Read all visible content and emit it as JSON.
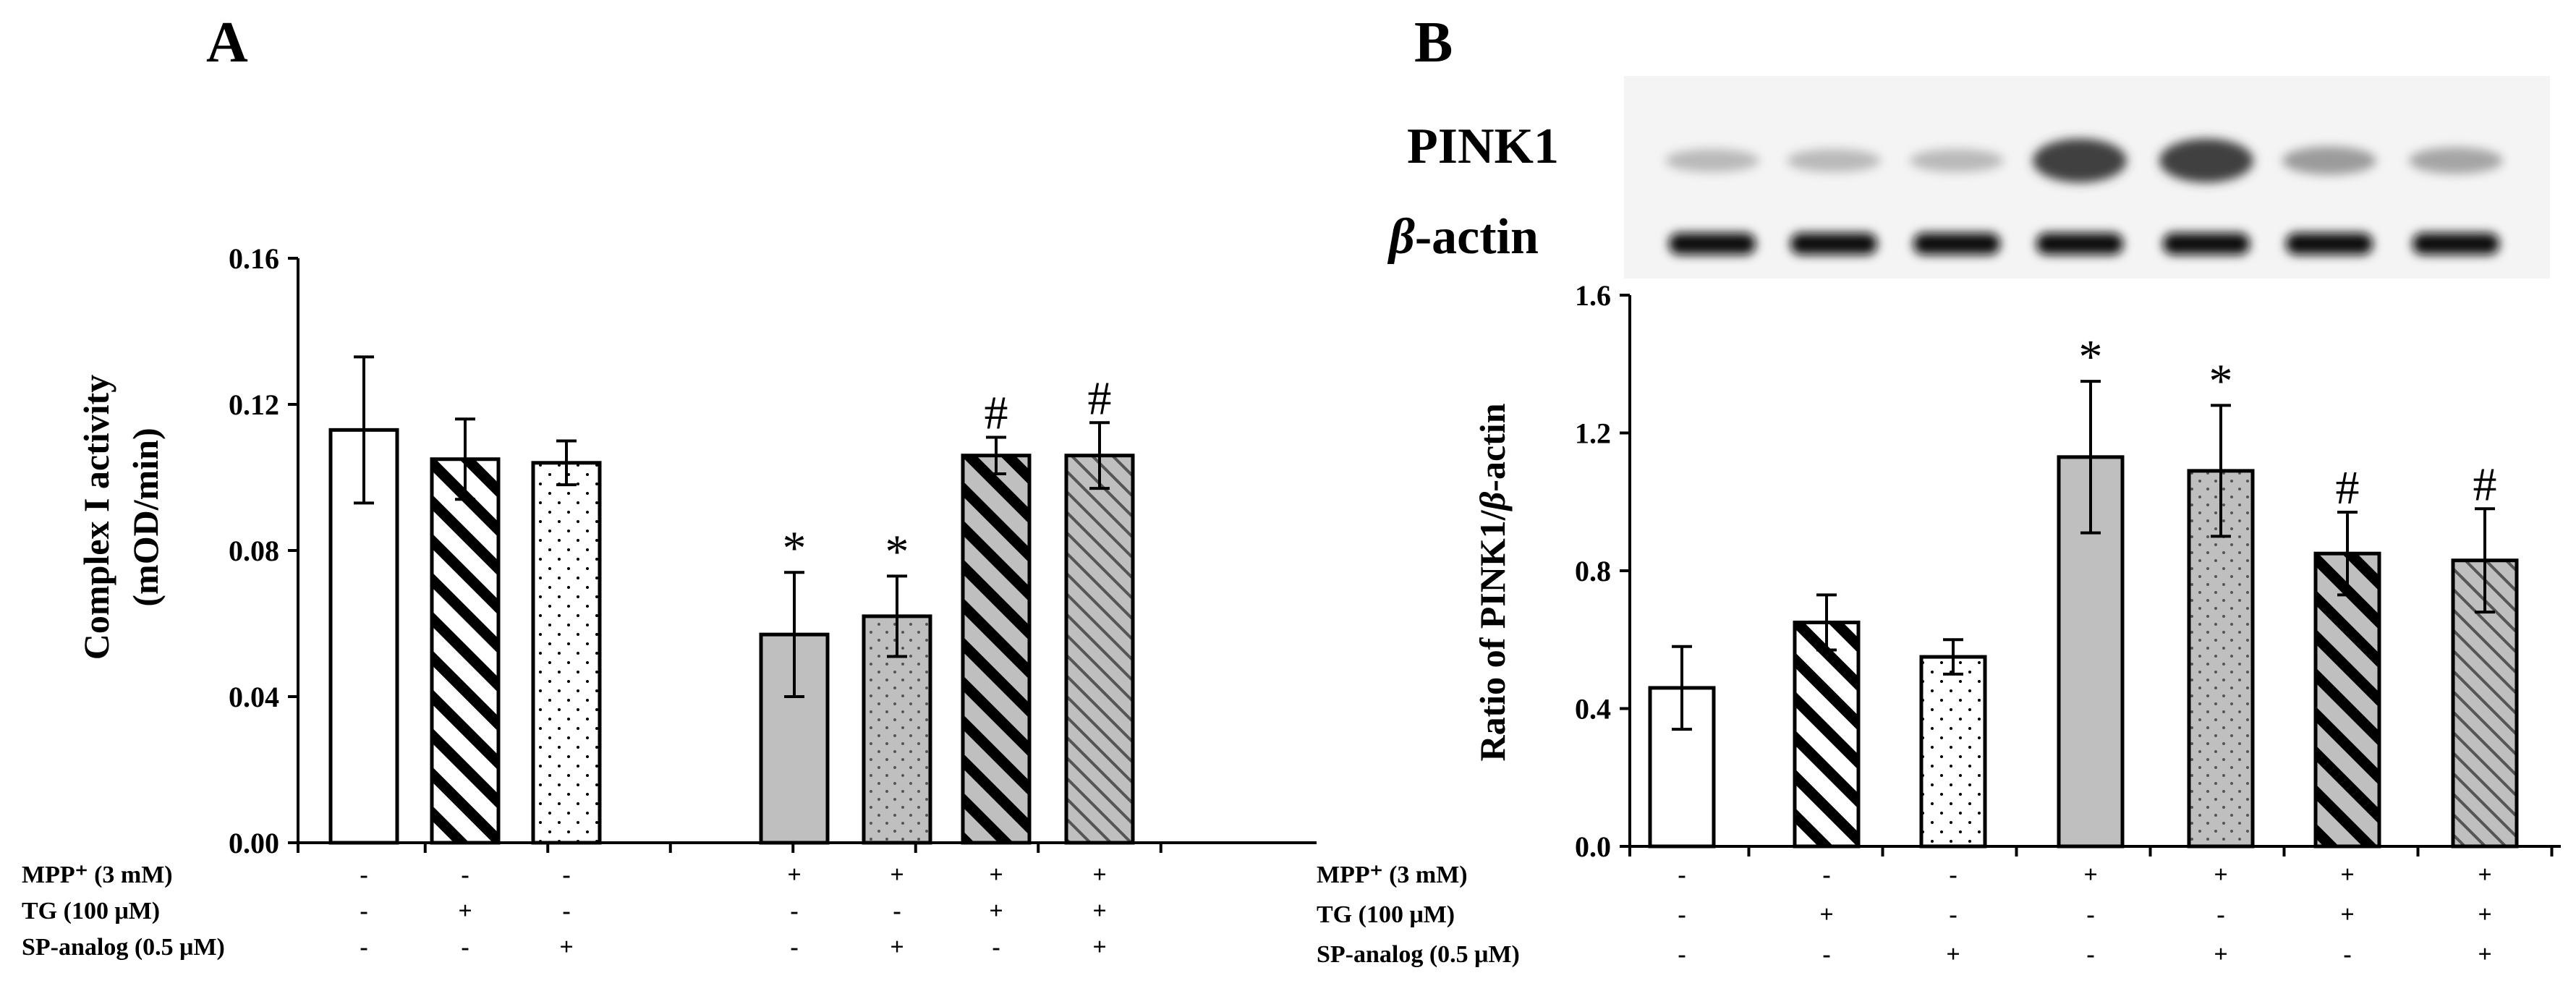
{
  "panels": {
    "A": {
      "letter": "A"
    },
    "B": {
      "letter": "B"
    }
  },
  "blot": {
    "band1_label": "PINK1",
    "band2_label_greek": "β",
    "band2_label_rest": "-actin",
    "pink1_intensity": [
      0.25,
      0.25,
      0.25,
      0.85,
      0.85,
      0.4,
      0.35
    ],
    "actin_intensity": [
      1,
      1,
      1,
      1,
      1,
      1,
      1
    ]
  },
  "conditions": {
    "labels": [
      "MPP⁺ (3 mM)",
      "TG (100 μM)",
      "SP-analog (0.5 μM)"
    ],
    "matrix": [
      [
        "-",
        "-",
        "-",
        "+",
        "+",
        "+",
        "+"
      ],
      [
        "-",
        "+",
        "-",
        "-",
        "-",
        "+",
        "+"
      ],
      [
        "-",
        "-",
        "+",
        "-",
        "+",
        "-",
        "+"
      ]
    ]
  },
  "colors": {
    "gray_fill": "#bfbfbf",
    "white_fill": "#ffffff",
    "ink": "#000000"
  },
  "chart_data": [
    {
      "type": "bar",
      "panel": "A",
      "ylabel_line1": "Complex I activity",
      "ylabel_line2": "(mOD/min)",
      "ylim": [
        0,
        0.16
      ],
      "yticks": [
        "0.00",
        "0.04",
        "0.08",
        "0.12",
        "0.16"
      ],
      "ytick_values": [
        0,
        0.04,
        0.08,
        0.12,
        0.16
      ],
      "values": [
        0.113,
        0.105,
        0.104,
        0.057,
        0.062,
        0.106,
        0.106
      ],
      "errors": [
        0.02,
        0.011,
        0.006,
        0.017,
        0.011,
        0.005,
        0.009
      ],
      "patterns": [
        "white",
        "hatch-black",
        "dots-white",
        "gray",
        "dots-gray",
        "hatch-black-gray",
        "hatch-fine-gray"
      ],
      "significance": [
        "",
        "",
        "",
        "*",
        "*",
        "#",
        "#"
      ]
    },
    {
      "type": "bar",
      "panel": "B",
      "ylabel_prefix": "Ratio of  PINK1/",
      "ylabel_greek": "β",
      "ylabel_suffix": "-actin",
      "ylim": [
        0,
        1.6
      ],
      "yticks": [
        "0.0",
        "0.4",
        "0.8",
        "1.2",
        "1.6"
      ],
      "ytick_values": [
        0,
        0.4,
        0.8,
        1.2,
        1.6
      ],
      "values": [
        0.46,
        0.65,
        0.55,
        1.13,
        1.09,
        0.85,
        0.83
      ],
      "errors": [
        0.12,
        0.08,
        0.05,
        0.22,
        0.19,
        0.12,
        0.15
      ],
      "patterns": [
        "white",
        "hatch-black",
        "dots-white",
        "gray",
        "dots-gray",
        "hatch-black-gray",
        "hatch-fine-gray"
      ],
      "significance": [
        "",
        "",
        "",
        "*",
        "*",
        "#",
        "#"
      ]
    }
  ]
}
